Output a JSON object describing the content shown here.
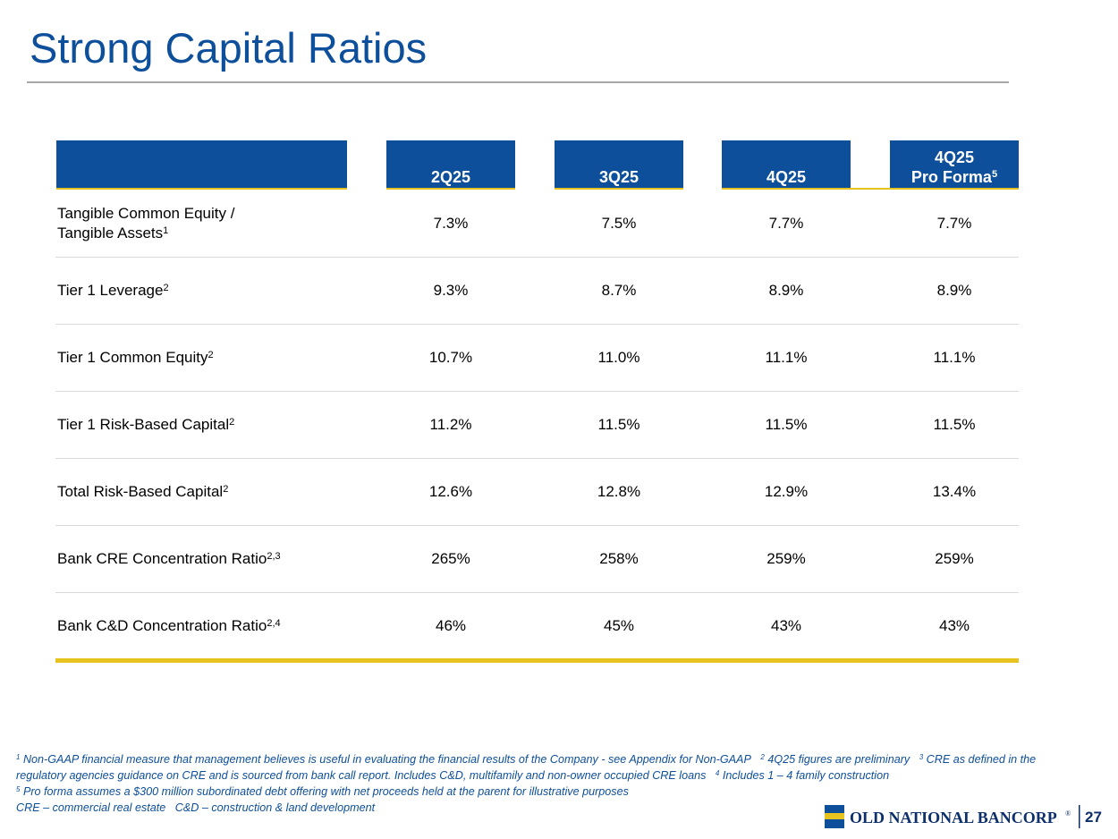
{
  "header": {
    "title": "Strong Capital Ratios"
  },
  "table": {
    "columns": [
      {
        "lines": [
          "2Q25"
        ]
      },
      {
        "lines": [
          "3Q25"
        ]
      },
      {
        "lines": [
          "4Q25"
        ]
      },
      {
        "lines": [
          "4Q25",
          "Pro Forma"
        ],
        "sup": "5"
      }
    ],
    "rows": [
      {
        "label_lines": [
          "Tangible Common Equity /",
          "Tangible Assets"
        ],
        "sup": "1",
        "values": [
          "7.3%",
          "7.5%",
          "7.7%",
          "7.7%"
        ]
      },
      {
        "label_lines": [
          "Tier 1 Leverage"
        ],
        "sup": "2",
        "values": [
          "9.3%",
          "8.7%",
          "8.9%",
          "8.9%"
        ]
      },
      {
        "label_lines": [
          "Tier 1 Common Equity"
        ],
        "sup": "2",
        "values": [
          "10.7%",
          "11.0%",
          "11.1%",
          "11.1%"
        ]
      },
      {
        "label_lines": [
          "Tier 1 Risk-Based Capital"
        ],
        "sup": "2",
        "values": [
          "11.2%",
          "11.5%",
          "11.5%",
          "11.5%"
        ]
      },
      {
        "label_lines": [
          "Total Risk-Based Capital"
        ],
        "sup": "2",
        "values": [
          "12.6%",
          "12.8%",
          "12.9%",
          "13.4%"
        ]
      },
      {
        "label_lines": [
          "Bank CRE Concentration Ratio"
        ],
        "sup": "2,3",
        "values": [
          "265%",
          "258%",
          "259%",
          "259%"
        ]
      },
      {
        "label_lines": [
          "Bank C&D Concentration Ratio"
        ],
        "sup": "2,4",
        "values": [
          "46%",
          "45%",
          "43%",
          "43%"
        ]
      }
    ]
  },
  "footnotes": {
    "paragraphs": [
      [
        {
          "mark": "1",
          "text": "Non-GAAP financial measure that management believes is useful in evaluating the financial results of the Company - see Appendix for Non-GAAP"
        },
        {
          "mark": "2",
          "text": "4Q25 figures are preliminary"
        },
        {
          "mark": "3",
          "text": "CRE as defined in the regulatory agencies guidance on CRE and is sourced from bank call report. Includes C&D, multifamily and non-owner occupied CRE loans"
        },
        {
          "mark": "4",
          "text": "Includes 1 – 4 family construction"
        }
      ],
      [
        {
          "mark": "5",
          "text": "Pro forma assumes a $300 million subordinated debt offering with net proceeds held at the parent for illustrative purposes"
        }
      ],
      [
        {
          "text": "CRE – commercial real estate   C&D – construction & land development"
        }
      ]
    ]
  },
  "footer": {
    "logo_text": "OLD NATIONAL BANCORP",
    "logo_mark": "®",
    "page_number": "27"
  }
}
